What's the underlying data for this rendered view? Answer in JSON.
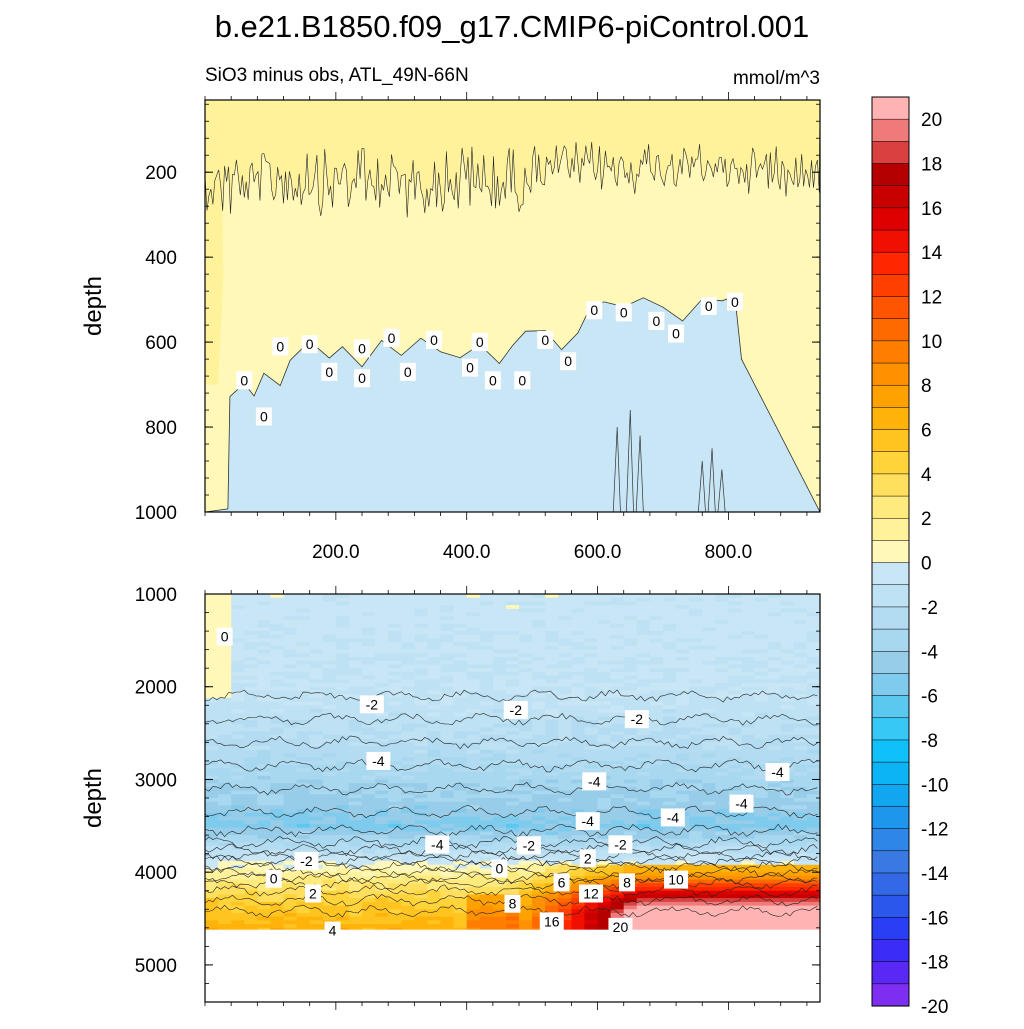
{
  "figure": {
    "title": "b.e21.B1850.f09_g17.CMIP6-piControl.001",
    "subtitle_left": "SiO3 minus obs, ATL_49N-66N",
    "subtitle_right": "mmol/m^3"
  },
  "chart_data": {
    "type": "heatmap",
    "variable": "SiO3 minus obs",
    "region": "ATL_49N-66N",
    "units": "mmol/m^3",
    "colorbar": {
      "levels": [
        -20,
        -19,
        -18,
        -17,
        -16,
        -15,
        -14,
        -13,
        -12,
        -11,
        -10,
        -9,
        -8,
        -7,
        -6,
        -5,
        -4,
        -3,
        -2,
        -1,
        0,
        1,
        2,
        3,
        4,
        5,
        6,
        7,
        8,
        9,
        10,
        11,
        12,
        13,
        14,
        15,
        16,
        17,
        18,
        19,
        20
      ],
      "colors": [
        "#7d2ef0",
        "#5a28f5",
        "#3b2cf7",
        "#2a3ff5",
        "#2b57ec",
        "#3369e6",
        "#3a78e3",
        "#2d86e8",
        "#1e96ec",
        "#12a6f0",
        "#0cb4f5",
        "#10c0f8",
        "#38c8f5",
        "#5ac9f0",
        "#7fcbee",
        "#98cde9",
        "#a8d8f0",
        "#b3dcf2",
        "#bee2f3",
        "#c8e6f5",
        "#fff8b8",
        "#fff29a",
        "#ffea7d",
        "#ffdf5d",
        "#ffd43a",
        "#ffc420",
        "#ffb30a",
        "#ffa200",
        "#ff9000",
        "#ff7e00",
        "#ff6a00",
        "#ff5400",
        "#ff3f00",
        "#ff2600",
        "#f00f00",
        "#de0000",
        "#c80000",
        "#b50000",
        "#d94040",
        "#ee7a7a",
        "#ffb3b3"
      ],
      "tick_labels": [
        "20",
        "18",
        "16",
        "14",
        "12",
        "10",
        "8",
        "6",
        "4",
        "2",
        "0",
        "-2",
        "-4",
        "-6",
        "-8",
        "-10",
        "-12",
        "-14",
        "-16",
        "-18",
        "-20"
      ]
    },
    "panels": [
      {
        "name": "upper",
        "ylabel": "depth",
        "ylim": [
          0,
          1000
        ],
        "y_ticks": [
          "200",
          "400",
          "600",
          "800",
          "1000"
        ],
        "y_tick_values": [
          200,
          400,
          600,
          800,
          1000
        ],
        "xlim": [
          0,
          940
        ],
        "x_ticks": [
          "200.0",
          "400.0",
          "600.0",
          "800.0"
        ],
        "x_tick_values": [
          200,
          400,
          600,
          800
        ],
        "zero_contour": [
          [
            0,
            1000
          ],
          [
            35,
            1000
          ],
          [
            38,
            720
          ],
          [
            60,
            690
          ],
          [
            75,
            740
          ],
          [
            90,
            680
          ],
          [
            115,
            700
          ],
          [
            130,
            640
          ],
          [
            160,
            600
          ],
          [
            190,
            650
          ],
          [
            210,
            610
          ],
          [
            240,
            660
          ],
          [
            270,
            600
          ],
          [
            300,
            640
          ],
          [
            330,
            590
          ],
          [
            360,
            610
          ],
          [
            390,
            650
          ],
          [
            420,
            600
          ],
          [
            450,
            640
          ],
          [
            470,
            620
          ],
          [
            490,
            570
          ],
          [
            520,
            560
          ],
          [
            545,
            610
          ],
          [
            570,
            570
          ],
          [
            590,
            520
          ],
          [
            610,
            510
          ],
          [
            640,
            520
          ],
          [
            670,
            500
          ],
          [
            700,
            520
          ],
          [
            730,
            540
          ],
          [
            760,
            510
          ],
          [
            790,
            490
          ],
          [
            810,
            500
          ],
          [
            820,
            640
          ]
        ],
        "contour_labels": [
          {
            "x": 60,
            "y": 690,
            "text": "0"
          },
          {
            "x": 90,
            "y": 775,
            "text": "0"
          },
          {
            "x": 115,
            "y": 610,
            "text": "0"
          },
          {
            "x": 160,
            "y": 605,
            "text": "0"
          },
          {
            "x": 190,
            "y": 670,
            "text": "0"
          },
          {
            "x": 240,
            "y": 685,
            "text": "0"
          },
          {
            "x": 240,
            "y": 615,
            "text": "0"
          },
          {
            "x": 285,
            "y": 590,
            "text": "0"
          },
          {
            "x": 310,
            "y": 670,
            "text": "0"
          },
          {
            "x": 350,
            "y": 595,
            "text": "0"
          },
          {
            "x": 405,
            "y": 660,
            "text": "0"
          },
          {
            "x": 420,
            "y": 600,
            "text": "0"
          },
          {
            "x": 440,
            "y": 690,
            "text": "0"
          },
          {
            "x": 485,
            "y": 690,
            "text": "0"
          },
          {
            "x": 520,
            "y": 595,
            "text": "0"
          },
          {
            "x": 555,
            "y": 645,
            "text": "0"
          },
          {
            "x": 595,
            "y": 525,
            "text": "0"
          },
          {
            "x": 640,
            "y": 530,
            "text": "0"
          },
          {
            "x": 690,
            "y": 550,
            "text": "0"
          },
          {
            "x": 720,
            "y": 580,
            "text": "0"
          },
          {
            "x": 770,
            "y": 515,
            "text": "0"
          },
          {
            "x": 810,
            "y": 505,
            "text": "0"
          }
        ]
      },
      {
        "name": "lower",
        "ylabel": "depth",
        "ylim": [
          1000,
          5400
        ],
        "y_ticks": [
          "1000",
          "2000",
          "3000",
          "4000",
          "5000"
        ],
        "y_tick_values": [
          1000,
          2000,
          3000,
          4000,
          5000
        ],
        "xlim": [
          0,
          940
        ],
        "data_bottom_depth": 4620,
        "depth_profile": [
          {
            "depth": 1000,
            "value": -1
          },
          {
            "depth": 2000,
            "value": -1.5
          },
          {
            "depth": 2300,
            "value": -2
          },
          {
            "depth": 2700,
            "value": -3
          },
          {
            "depth": 3000,
            "value": -4
          },
          {
            "depth": 3300,
            "value": -5
          },
          {
            "depth": 3500,
            "value": -6
          },
          {
            "depth": 3650,
            "value": -4
          },
          {
            "depth": 3800,
            "value": -2
          },
          {
            "depth": 3950,
            "value": 0
          },
          {
            "depth": 4100,
            "value": 2
          },
          {
            "depth": 4300,
            "value": 4
          },
          {
            "depth": 4600,
            "value": 6
          }
        ],
        "hot_core_east": [
          {
            "depth": 4000,
            "value": 6
          },
          {
            "depth": 4150,
            "value": 12
          },
          {
            "depth": 4300,
            "value": 18
          },
          {
            "depth": 4450,
            "value": 21
          }
        ],
        "contour_labels": [
          {
            "x": 30,
            "y": 1460,
            "text": "0"
          },
          {
            "x": 255,
            "y": 2190,
            "text": "-2"
          },
          {
            "x": 475,
            "y": 2250,
            "text": "-2"
          },
          {
            "x": 660,
            "y": 2350,
            "text": "-2"
          },
          {
            "x": 265,
            "y": 2800,
            "text": "-4"
          },
          {
            "x": 595,
            "y": 3020,
            "text": "-4"
          },
          {
            "x": 875,
            "y": 2920,
            "text": "-4"
          },
          {
            "x": 820,
            "y": 3260,
            "text": "-4"
          },
          {
            "x": 585,
            "y": 3450,
            "text": "-4"
          },
          {
            "x": 715,
            "y": 3410,
            "text": "-4"
          },
          {
            "x": 355,
            "y": 3700,
            "text": "-4"
          },
          {
            "x": 495,
            "y": 3710,
            "text": "-2"
          },
          {
            "x": 635,
            "y": 3700,
            "text": "-2"
          },
          {
            "x": 155,
            "y": 3880,
            "text": "-2"
          },
          {
            "x": 450,
            "y": 3960,
            "text": "0"
          },
          {
            "x": 585,
            "y": 3850,
            "text": "2"
          },
          {
            "x": 105,
            "y": 4070,
            "text": "0"
          },
          {
            "x": 165,
            "y": 4230,
            "text": "2"
          },
          {
            "x": 545,
            "y": 4110,
            "text": "6"
          },
          {
            "x": 590,
            "y": 4230,
            "text": "12"
          },
          {
            "x": 645,
            "y": 4110,
            "text": "8"
          },
          {
            "x": 720,
            "y": 4080,
            "text": "10"
          },
          {
            "x": 470,
            "y": 4340,
            "text": "8"
          },
          {
            "x": 530,
            "y": 4530,
            "text": "16"
          },
          {
            "x": 635,
            "y": 4590,
            "text": "20"
          },
          {
            "x": 195,
            "y": 4630,
            "text": "4"
          }
        ]
      }
    ]
  }
}
